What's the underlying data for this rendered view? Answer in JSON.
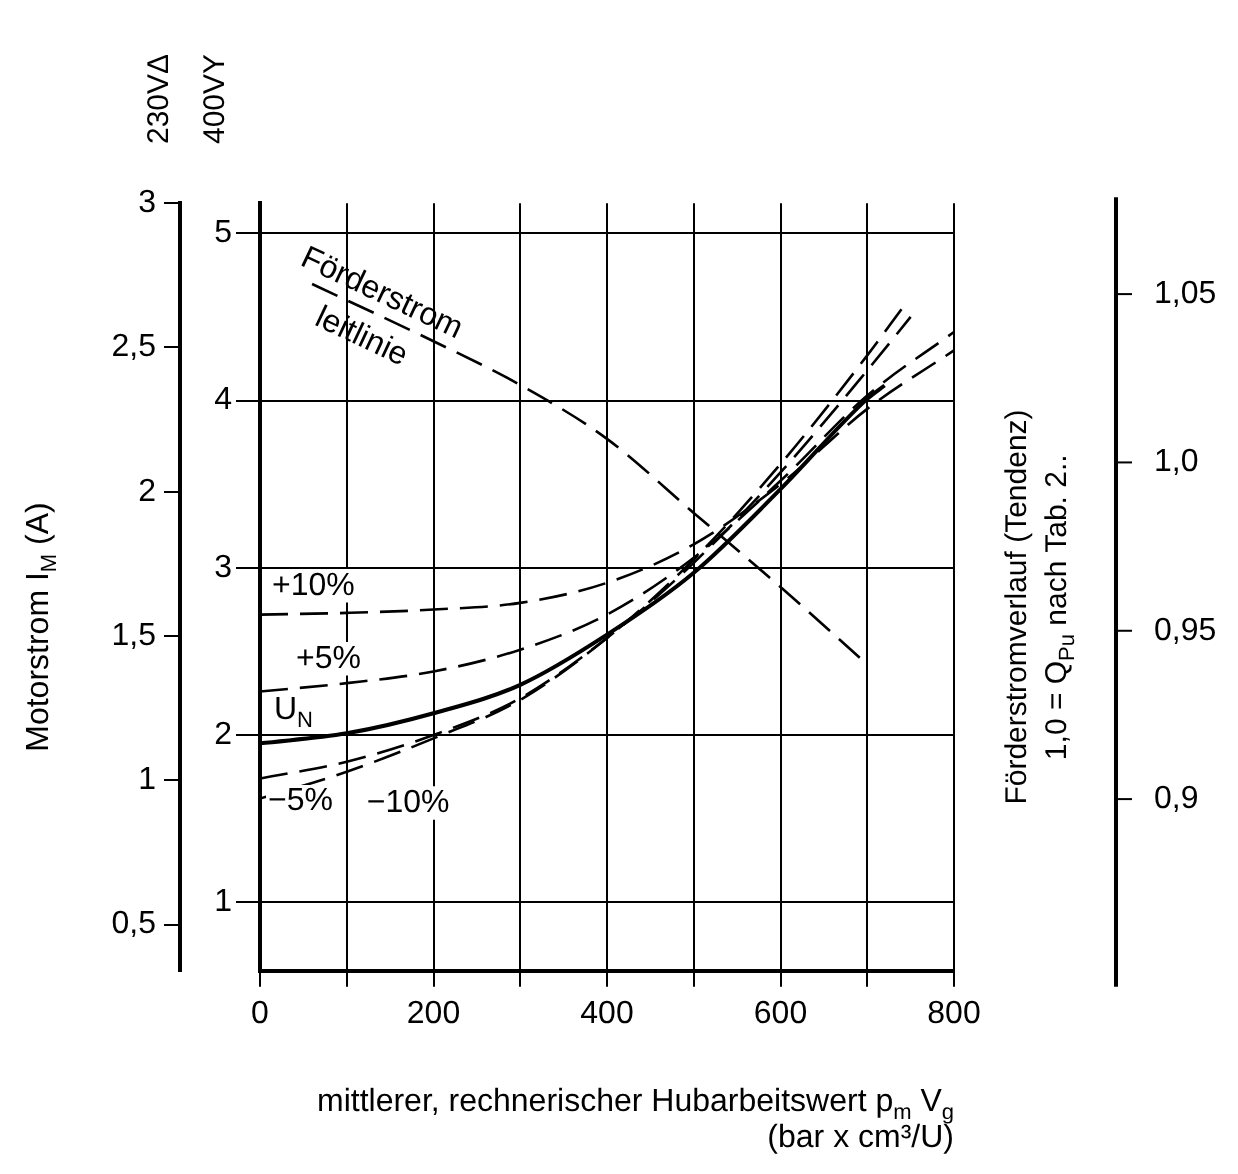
{
  "chart_data": {
    "type": "line",
    "xlabel": "mittlerer, rechnerischer Hubarbeitswert p$_{m}$ V$_{g}$\n(bar x cm³/U)",
    "ylabel": "Motorstrom I$_{M}$ (A)",
    "y3label": "Förderstromverlauf (Tendenz)\n1,0 = Q$_{Pu}$ nach Tab. 2..",
    "annotations": [
      "230VΔ",
      "400VY"
    ],
    "xlim": [
      0,
      800
    ],
    "xticks": [
      0,
      {
        "value": 100,
        "label": null
      },
      200,
      {
        "value": 300,
        "label": null
      },
      400,
      {
        "value": 500,
        "label": null
      },
      600,
      {
        "value": 700,
        "label": null
      },
      800
    ],
    "ylim": [
      0.34,
      3.0
    ],
    "yticks": [
      {
        "value": 0.5,
        "label": "0,5"
      },
      1,
      {
        "value": 1.5,
        "label": "1,5"
      },
      2,
      {
        "value": 2.5,
        "label": "2,5"
      },
      3
    ],
    "y2lim": [
      0.59,
      5.18
    ],
    "y2ticks": [
      1,
      2,
      3,
      4,
      5
    ],
    "y3lim": [
      0.849,
      1.077
    ],
    "y3ticks": [
      {
        "value": 0.9,
        "label": "0,9"
      },
      {
        "value": 0.95,
        "label": "0,95"
      },
      {
        "value": 1.0,
        "label": "1,0"
      },
      {
        "value": 1.05,
        "label": "1,05"
      }
    ],
    "grid": true,
    "marker": "none",
    "series": [
      {
        "name": "+10%",
        "color": "#000000",
        "line_style": "dashed",
        "axis": "y2",
        "x": [
          0,
          100,
          200,
          300,
          400,
          500,
          600,
          700,
          800
        ],
        "values": [
          2.72,
          2.73,
          2.75,
          2.79,
          2.91,
          3.14,
          3.5,
          3.95,
          4.3
        ]
      },
      {
        "name": "+5%",
        "color": "#000000",
        "line_style": "dashed",
        "axis": "y2",
        "x": [
          0,
          100,
          200,
          300,
          400,
          500,
          600,
          700,
          800
        ],
        "values": [
          2.26,
          2.31,
          2.38,
          2.51,
          2.72,
          3.06,
          3.52,
          4.03,
          4.41
        ]
      },
      {
        "name": "U$_{N}$",
        "color": "#000000",
        "line_style": "solid",
        "axis": "y2",
        "x": [
          0,
          100,
          200,
          300,
          400,
          500,
          600,
          700,
          720
        ],
        "values": [
          1.95,
          2.01,
          2.13,
          2.3,
          2.6,
          2.97,
          3.47,
          4.01,
          4.09
        ]
      },
      {
        "name": "−5%",
        "color": "#000000",
        "line_style": "dashed",
        "axis": "y2",
        "x": [
          0,
          100,
          200,
          300,
          400,
          500,
          600,
          700,
          750
        ],
        "values": [
          1.74,
          1.84,
          2.0,
          2.22,
          2.58,
          3.03,
          3.57,
          4.18,
          4.5
        ]
      },
      {
        "name": "−10%",
        "color": "#000000",
        "line_style": "dashed",
        "axis": "y2",
        "x": [
          0,
          100,
          200,
          300,
          400,
          500,
          600,
          700,
          740
        ],
        "values": [
          1.62,
          1.78,
          1.98,
          2.21,
          2.58,
          3.05,
          3.62,
          4.27,
          4.55
        ]
      },
      {
        "name": "Förderstrom leitlinie",
        "color": "#000000",
        "line_style": "dashed",
        "axis": "y3",
        "x": [
          60,
          200,
          300,
          400,
          500,
          600,
          700
        ],
        "values": [
          1.053,
          1.036,
          1.023,
          1.007,
          0.985,
          0.963,
          0.94
        ]
      }
    ]
  }
}
